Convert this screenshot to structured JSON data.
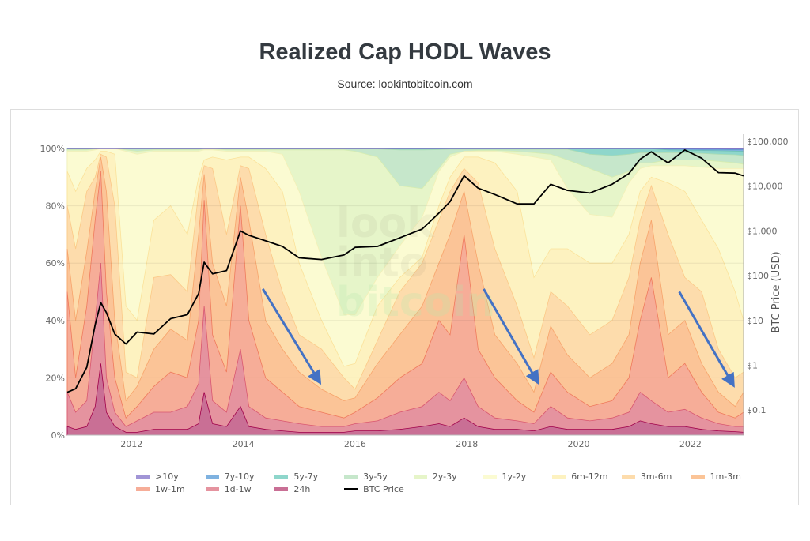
{
  "header": {
    "title": "Realized Cap HODL Waves",
    "subtitle": "Source: lookintobitcoin.com"
  },
  "watermark": [
    "look",
    "into",
    "bitcoin"
  ],
  "chart_data": {
    "type": "area",
    "stacked": true,
    "title": "Realized Cap HODL Waves",
    "x_axis": {
      "ticks": [
        "2012",
        "2014",
        "2016",
        "2018",
        "2020",
        "2022"
      ],
      "tick_values": [
        2012,
        2014,
        2016,
        2018,
        2020,
        2022
      ],
      "range": [
        2010.85,
        2022.95
      ]
    },
    "y_axis": {
      "ticks": [
        "0%",
        "20%",
        "40%",
        "60%",
        "80%",
        "100%"
      ],
      "tick_values": [
        0,
        20,
        40,
        60,
        80,
        100
      ],
      "range": [
        0,
        100
      ]
    },
    "y2_axis": {
      "label": "BTC Price (USD)",
      "scale": "log",
      "ticks": [
        "$0.1",
        "$1",
        "$10",
        "$100",
        "$1,000",
        "$10,000",
        "$100,000"
      ],
      "tick_values": [
        0.1,
        1,
        10,
        100,
        1000,
        10000,
        100000
      ],
      "range_log10": [
        -1.56,
        4.84
      ]
    },
    "grid": "horizontal",
    "legend_placement": "bottom",
    "x": [
      2010.85,
      2011.0,
      2011.2,
      2011.35,
      2011.45,
      2011.55,
      2011.7,
      2011.9,
      2012.1,
      2012.4,
      2012.7,
      2013.0,
      2013.2,
      2013.3,
      2013.45,
      2013.7,
      2013.95,
      2014.1,
      2014.4,
      2014.7,
      2015.0,
      2015.4,
      2015.8,
      2016.0,
      2016.4,
      2016.8,
      2017.2,
      2017.5,
      2017.7,
      2017.95,
      2018.2,
      2018.5,
      2018.9,
      2019.2,
      2019.5,
      2019.8,
      2020.2,
      2020.6,
      2020.9,
      2021.1,
      2021.3,
      2021.6,
      2021.9,
      2022.2,
      2022.5,
      2022.8,
      2022.95
    ],
    "values_are": "cumulative percent (upper edge of each band)",
    "series": [
      {
        "name": ">10y",
        "color": "#a195d6",
        "stroke": "#7b6fc4",
        "values": [
          100,
          100,
          100,
          100,
          100,
          100,
          100,
          100,
          100,
          100,
          100,
          100,
          100,
          100,
          100,
          100,
          100,
          100,
          100,
          100,
          100,
          100,
          100,
          100,
          100,
          100,
          100,
          100,
          100,
          100,
          100,
          100,
          100,
          100,
          100,
          100,
          100,
          100,
          100,
          100,
          100,
          100,
          100,
          100,
          100,
          100,
          100
        ]
      },
      {
        "name": "7y-10y",
        "color": "#7fb2e0",
        "stroke": "#5a94cc",
        "values": [
          99.95,
          99.95,
          99.95,
          99.95,
          99.95,
          99.95,
          99.95,
          99.95,
          99.95,
          99.95,
          99.95,
          99.95,
          99.95,
          99.95,
          99.95,
          99.95,
          99.95,
          99.95,
          99.95,
          99.95,
          99.95,
          99.95,
          99.95,
          99.95,
          99.95,
          99.95,
          99.95,
          99.95,
          99.95,
          99.95,
          99.95,
          99.95,
          99.95,
          99.95,
          99.95,
          99.95,
          99.95,
          99.95,
          99.95,
          99.95,
          99.95,
          99.8,
          99.8,
          99.7,
          99.7,
          99.6,
          99.6
        ]
      },
      {
        "name": "5y-7y",
        "color": "#8ed6cb",
        "stroke": "#6cc0b3",
        "values": [
          99.9,
          99.9,
          99.9,
          99.9,
          99.9,
          99.9,
          99.9,
          99.9,
          99.9,
          99.9,
          99.9,
          99.9,
          99.9,
          99.9,
          99.9,
          99.9,
          99.9,
          99.9,
          99.9,
          99.9,
          99.9,
          99.9,
          99.9,
          99.9,
          99.9,
          99.9,
          99.9,
          99.9,
          99.9,
          99.9,
          99.9,
          99.9,
          99.9,
          99.9,
          99.9,
          99.9,
          99.9,
          99.9,
          99.9,
          99.9,
          99.9,
          99.5,
          99.4,
          99.3,
          99.2,
          99.1,
          99.0
        ]
      },
      {
        "name": "3y-5y",
        "color": "#c6e7cb",
        "stroke": "#addcb3",
        "values": [
          99.8,
          99.8,
          99.8,
          99.8,
          99.8,
          99.8,
          99.8,
          99.8,
          99.8,
          99.8,
          99.8,
          99.8,
          99.8,
          99.8,
          99.8,
          99.8,
          99.8,
          99.8,
          99.8,
          99.8,
          99.8,
          99.8,
          99.8,
          99.8,
          99.8,
          99.5,
          99.5,
          99.6,
          99.7,
          99.7,
          99.7,
          99.7,
          99.7,
          99.7,
          99.7,
          99.7,
          98,
          97.5,
          98,
          98.5,
          98.5,
          98.5,
          98.5,
          98.3,
          98,
          97.8,
          97.5
        ]
      },
      {
        "name": "2y-3y",
        "color": "#e6f5c9",
        "stroke": "#d6ecb0",
        "values": [
          99.5,
          99.5,
          99.5,
          99.8,
          100,
          100,
          100,
          99.5,
          99,
          99.5,
          99.5,
          99.5,
          99.5,
          99.8,
          99.8,
          99.5,
          99.5,
          99.5,
          99.5,
          99.5,
          99.5,
          99.5,
          99.5,
          99,
          97,
          87,
          86,
          93,
          98,
          99,
          99.3,
          99.3,
          99,
          98.5,
          98,
          96,
          93,
          90,
          92,
          95,
          95,
          96,
          96,
          96,
          95.5,
          95,
          94.5
        ]
      },
      {
        "name": "1y-2y",
        "color": "#fbfbd2",
        "stroke": "#f3f0b8",
        "values": [
          99,
          99,
          99,
          99.5,
          100,
          100,
          100,
          99,
          98,
          99,
          99,
          99,
          99,
          99.5,
          99.5,
          99,
          99,
          99,
          99,
          98,
          85,
          62,
          42,
          42,
          55,
          66,
          76,
          92,
          97,
          99,
          99,
          99,
          98,
          97,
          96,
          86,
          77,
          76,
          88,
          93,
          94,
          94,
          94,
          93.5,
          93,
          93,
          93
        ]
      },
      {
        "name": "6m-12m",
        "color": "#fdf2c0",
        "stroke": "#fbe29a",
        "values": [
          92,
          85,
          93,
          96,
          99,
          99,
          98,
          45,
          40,
          75,
          80,
          70,
          90,
          96,
          97,
          96,
          97,
          97,
          93,
          85,
          60,
          40,
          24,
          25,
          45,
          55,
          62,
          80,
          90,
          97,
          97,
          95,
          85,
          55,
          65,
          65,
          60,
          60,
          70,
          85,
          90,
          88,
          85,
          75,
          65,
          50,
          40
        ]
      },
      {
        "name": "3m-6m",
        "color": "#fddcac",
        "stroke": "#fbc987",
        "values": [
          80,
          65,
          85,
          90,
          98,
          97,
          80,
          22,
          20,
          55,
          56,
          50,
          85,
          94,
          93,
          70,
          94,
          93,
          70,
          50,
          35,
          30,
          20,
          16,
          33,
          50,
          60,
          75,
          85,
          93,
          88,
          65,
          45,
          27,
          50,
          45,
          35,
          40,
          55,
          75,
          87,
          70,
          55,
          50,
          30,
          20,
          22
        ]
      },
      {
        "name": "1m-3m",
        "color": "#fbc497",
        "stroke": "#f7a46b",
        "values": [
          65,
          40,
          64,
          85,
          97,
          85,
          40,
          12,
          17,
          30,
          37,
          33,
          70,
          91,
          60,
          45,
          90,
          75,
          40,
          30,
          22,
          16,
          12,
          13,
          25,
          35,
          45,
          60,
          70,
          85,
          60,
          35,
          25,
          15,
          38,
          28,
          20,
          25,
          35,
          60,
          75,
          35,
          40,
          25,
          15,
          10,
          15
        ]
      },
      {
        "name": "1w-1m",
        "color": "#f6ad98",
        "stroke": "#ef7a5c",
        "values": [
          50,
          20,
          45,
          75,
          92,
          50,
          20,
          6,
          10,
          17,
          22,
          20,
          40,
          82,
          35,
          22,
          80,
          40,
          20,
          15,
          10,
          8,
          6,
          8,
          13,
          20,
          25,
          40,
          35,
          70,
          30,
          20,
          12,
          8,
          22,
          15,
          10,
          12,
          20,
          40,
          55,
          20,
          25,
          15,
          8,
          6,
          8
        ]
      },
      {
        "name": "1d-1w",
        "color": "#e5939f",
        "stroke": "#d9576f",
        "values": [
          15,
          8,
          12,
          40,
          60,
          20,
          8,
          3,
          5,
          8,
          8,
          10,
          18,
          45,
          12,
          8,
          30,
          10,
          6,
          5,
          4,
          3,
          3,
          4,
          5,
          8,
          10,
          15,
          12,
          20,
          10,
          6,
          5,
          4,
          10,
          6,
          5,
          6,
          8,
          15,
          12,
          8,
          9,
          6,
          4,
          3,
          3
        ]
      },
      {
        "name": "24h",
        "color": "#c96f95",
        "stroke": "#a0004a",
        "values": [
          3,
          2,
          3,
          10,
          25,
          8,
          3,
          1,
          1,
          2,
          2,
          2,
          4,
          15,
          4,
          3,
          10,
          3,
          2,
          1.5,
          1,
          1,
          1,
          1.5,
          1.5,
          2,
          3,
          4,
          3,
          6,
          3,
          2,
          2,
          1.5,
          3,
          2,
          2,
          2,
          3,
          5,
          4,
          3,
          3,
          2,
          1.5,
          1.2,
          1
        ]
      }
    ],
    "price_series": {
      "name": "BTC Price",
      "color": "#000000",
      "values": [
        0.25,
        0.3,
        0.9,
        8,
        25,
        15,
        5,
        3,
        5.5,
        5,
        11,
        13.5,
        40,
        200,
        110,
        130,
        1000,
        800,
        600,
        450,
        250,
        230,
        290,
        430,
        450,
        700,
        1100,
        2500,
        4500,
        17000,
        9000,
        6500,
        4000,
        4000,
        11000,
        8000,
        7000,
        11000,
        19000,
        40000,
        58000,
        33000,
        64000,
        42000,
        20000,
        19500,
        17000
      ]
    },
    "annotations": [
      {
        "type": "arrow",
        "color": "#4472c4",
        "from": [
          2014.35,
          51
        ],
        "to": [
          2015.35,
          19
        ]
      },
      {
        "type": "arrow",
        "color": "#4472c4",
        "from": [
          2018.3,
          51
        ],
        "to": [
          2019.25,
          19
        ]
      },
      {
        "type": "arrow",
        "color": "#4472c4",
        "from": [
          2021.8,
          50
        ],
        "to": [
          2022.75,
          18
        ]
      }
    ]
  },
  "legend": [
    ">10y",
    "7y-10y",
    "5y-7y",
    "3y-5y",
    "2y-3y",
    "1y-2y",
    "6m-12m",
    "3m-6m",
    "1m-3m",
    "1w-1m",
    "1d-1w",
    "24h",
    "BTC Price"
  ]
}
